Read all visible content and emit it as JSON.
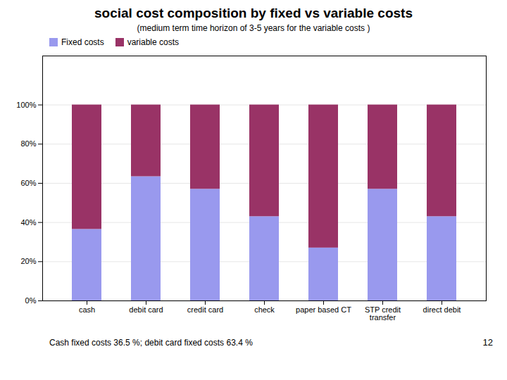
{
  "chart_data": {
    "type": "bar",
    "stacked": true,
    "title": "social cost composition by fixed vs variable costs",
    "subtitle": "(medium term time horizon of 3-5 years for the variable costs )",
    "annotations": [
      "Cash fixed costs 36.5 %; debit card fixed costs 63.4 %",
      "12"
    ],
    "categories": [
      "cash",
      "debit card",
      "credit card",
      "check",
      "paper based CT",
      "STP credit\ntransfer",
      "direct debit"
    ],
    "series": [
      {
        "name": "Fixed costs",
        "color": "#9999EE",
        "values": [
          36.5,
          63.4,
          57.0,
          43.0,
          27.0,
          57.0,
          43.0
        ]
      },
      {
        "name": "variable costs",
        "color": "#993366",
        "values": [
          63.5,
          36.6,
          43.0,
          57.0,
          73.0,
          43.0,
          57.0
        ]
      }
    ],
    "ylim": [
      0,
      125
    ],
    "yticks": [
      {
        "value": 0,
        "label": "0%"
      },
      {
        "value": 20,
        "label": "20%"
      },
      {
        "value": 40,
        "label": "40%"
      },
      {
        "value": 60,
        "label": "60%"
      },
      {
        "value": 80,
        "label": "80%"
      },
      {
        "value": 100,
        "label": "100%"
      }
    ],
    "grid": true,
    "legend": "upper left"
  }
}
